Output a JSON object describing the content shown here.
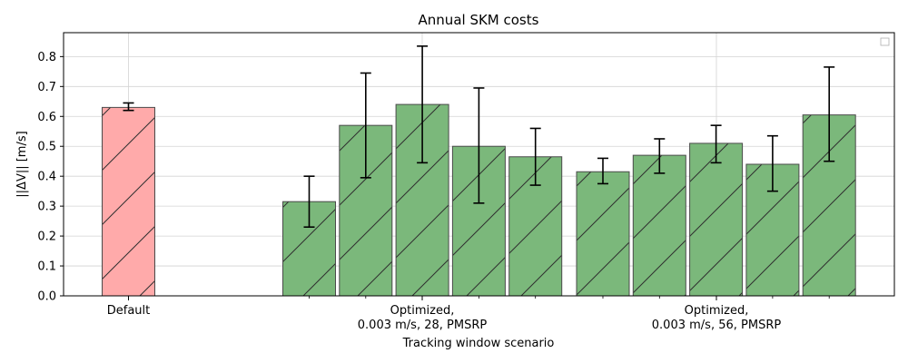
{
  "chart_data": {
    "type": "bar",
    "title": "Annual SKM costs",
    "xlabel": "Tracking window scenario",
    "ylabel": "||ΔV|| [m/s]",
    "ylim": [
      0,
      0.88
    ],
    "yticks": [
      "0.0",
      "0.1",
      "0.2",
      "0.3",
      "0.4",
      "0.5",
      "0.6",
      "0.7",
      "0.8"
    ],
    "grid": true,
    "legend": "top-right",
    "hatch": "diagonal",
    "groups": [
      {
        "label": "Default",
        "color": "#ffaaaa",
        "bars": [
          {
            "value": 0.63,
            "err_low": 0.62,
            "err_high": 0.645
          }
        ]
      },
      {
        "label": "Optimized,\n0.003 m/s, 28, PMSRP",
        "color": "#7bb87b",
        "bars": [
          {
            "value": 0.315,
            "err_low": 0.23,
            "err_high": 0.4
          },
          {
            "value": 0.57,
            "err_low": 0.395,
            "err_high": 0.745
          },
          {
            "value": 0.64,
            "err_low": 0.445,
            "err_high": 0.835
          },
          {
            "value": 0.5,
            "err_low": 0.31,
            "err_high": 0.695
          },
          {
            "value": 0.465,
            "err_low": 0.37,
            "err_high": 0.56
          }
        ]
      },
      {
        "label": "Optimized,\n0.003 m/s, 56, PMSRP",
        "color": "#7bb87b",
        "bars": [
          {
            "value": 0.415,
            "err_low": 0.375,
            "err_high": 0.46
          },
          {
            "value": 0.47,
            "err_low": 0.41,
            "err_high": 0.525
          },
          {
            "value": 0.51,
            "err_low": 0.445,
            "err_high": 0.57
          },
          {
            "value": 0.44,
            "err_low": 0.35,
            "err_high": 0.535
          },
          {
            "value": 0.605,
            "err_low": 0.45,
            "err_high": 0.765
          }
        ]
      }
    ]
  }
}
